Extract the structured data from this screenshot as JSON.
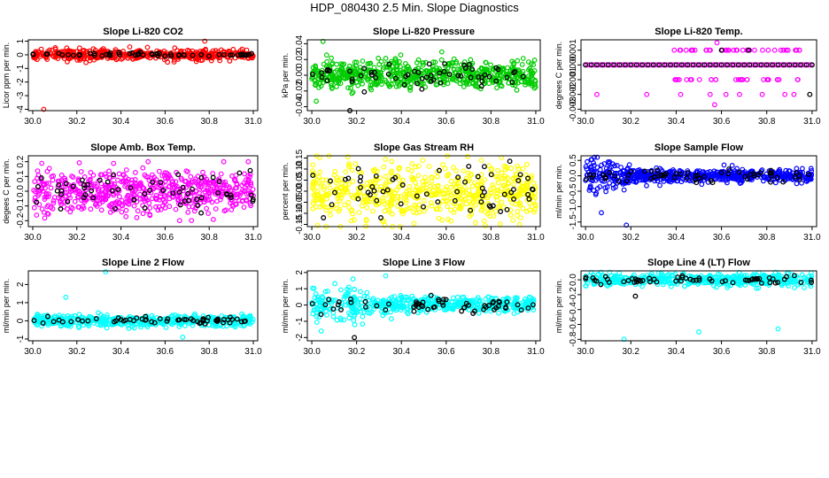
{
  "figure": {
    "title": "HDP_080430  2.5 Min. Slope Diagnostics"
  },
  "chart_data": [
    {
      "type": "scatter",
      "title": "Slope Li-820 CO2",
      "ylabel": "Licor ppm per min.",
      "xlim": [
        29.98,
        31.02
      ],
      "ylim": [
        -4.1,
        1.1
      ],
      "xticks": [
        "30.0",
        "30.2",
        "30.4",
        "30.6",
        "30.8",
        "31.0"
      ],
      "yticks": [
        -4,
        -3,
        -2,
        -1,
        0,
        1
      ],
      "ytick_labels": [
        "-4",
        "-3",
        "-2",
        "-1",
        "0",
        "1"
      ],
      "series": [
        {
          "name": "slopes",
          "color": "#ff0000",
          "values": "n=480 points, centered near 0 (sd≈0.18), range ≈ -0.6 to 1.0; outlier -4.0 at x≈30.05"
        },
        {
          "name": "selected",
          "color": "#000000",
          "values": "~60 points near 0 (sd≈0.08)"
        }
      ]
    },
    {
      "type": "scatter",
      "title": "Slope Li-820 Pressure",
      "ylabel": "kPa per min.",
      "xlim": [
        29.98,
        31.02
      ],
      "ylim": [
        -0.045,
        0.045
      ],
      "xticks": [
        "30.0",
        "30.2",
        "30.4",
        "30.6",
        "30.8",
        "31.0"
      ],
      "yticks": [
        -0.04,
        -0.02,
        0,
        0.02,
        0.04
      ],
      "ytick_labels": [
        "-0.04",
        "-0.02",
        "0.00",
        "0.02",
        "0.04"
      ],
      "series": [
        {
          "name": "slopes",
          "color": "#00cc00",
          "values": "n=620 points, mean ≈ 0 (sd≈0.009), range ≈ -0.038 to 0.043"
        },
        {
          "name": "selected",
          "color": "#000000",
          "values": "~60 points near 0 (sd≈0.007), one at -0.045 near x=30.17"
        }
      ]
    },
    {
      "type": "scatter",
      "title": "Slope Li-820 Temp.",
      "ylabel": "degrees C per min.",
      "xlim": [
        29.98,
        31.02
      ],
      "ylim": [
        -0.0031,
        0.0017
      ],
      "xticks": [
        "30.0",
        "30.2",
        "30.4",
        "30.6",
        "30.8",
        "31.0"
      ],
      "yticks": [
        -0.003,
        -0.002,
        -0.001,
        0,
        0.001
      ],
      "ytick_labels": [
        "-0.003",
        "-0.002",
        "-0.001",
        "0.000",
        "0.001"
      ],
      "series": [
        {
          "name": "slopes",
          "color": "#ff00ff",
          "values": "quantized: mostly 0.0000, some at ±0.0010, few at -0.0020 and 0.0015"
        },
        {
          "name": "selected",
          "color": "#000000",
          "values": "mostly 0.0000"
        }
      ]
    },
    {
      "type": "scatter",
      "title": "Slope Amb. Box Temp.",
      "ylabel": "degees C per min.",
      "xlim": [
        29.98,
        31.02
      ],
      "ylim": [
        -0.24,
        0.24
      ],
      "xticks": [
        "30.0",
        "30.2",
        "30.4",
        "30.6",
        "30.8",
        "31.0"
      ],
      "yticks": [
        -0.2,
        -0.1,
        0,
        0.1,
        0.2
      ],
      "ytick_labels": [
        "-0.2",
        "-0.1",
        "0.0",
        "0.1",
        "0.2"
      ],
      "series": [
        {
          "name": "slopes",
          "color": "#ff00ff",
          "values": "n=600 points, mean ≈ 0 (sd≈0.075), range ≈ -0.2 to 0.2"
        },
        {
          "name": "selected",
          "color": "#000000",
          "values": "~60 points, sd≈0.06"
        }
      ]
    },
    {
      "type": "scatter",
      "title": "Slope Gas Stream RH",
      "ylabel": "percent per min.",
      "xlim": [
        29.98,
        31.02
      ],
      "ylim": [
        -0.16,
        0.16
      ],
      "xticks": [
        "30.0",
        "30.2",
        "30.4",
        "30.6",
        "30.8",
        "31.0"
      ],
      "yticks": [
        -0.15,
        -0.1,
        -0.05,
        0,
        0.05,
        0.1,
        0.15
      ],
      "ytick_labels": [
        "-0.15",
        "-0.10",
        "-0.05",
        "0.00",
        "0.05",
        "0.10",
        "0.15"
      ],
      "series": [
        {
          "name": "slopes",
          "color": "#ffff00",
          "values": "n=600 points, mean ≈ 0 (sd≈0.06), range ≈ -0.16 to 0.16"
        },
        {
          "name": "selected",
          "color": "#000000",
          "values": "~60 points, sd≈0.06"
        }
      ]
    },
    {
      "type": "scatter",
      "title": "Slope Sample Flow",
      "ylabel": "ml/min per min.",
      "xlim": [
        29.98,
        31.02
      ],
      "ylim": [
        -1.65,
        0.65
      ],
      "xticks": [
        "30.0",
        "30.2",
        "30.4",
        "30.6",
        "30.8",
        "31.0"
      ],
      "yticks": [
        -1.5,
        -1.0,
        -0.5,
        0,
        0.5
      ],
      "ytick_labels": [
        "-1.5",
        "-1.0",
        "-0.5",
        "0.0",
        "0.5"
      ],
      "series": [
        {
          "name": "slopes",
          "color": "#0000ff",
          "values": "n=620 points, mean ≈ 0 (sd≈0.12), wider scatter ≈ ±0.6 for x<30.2; min ≈ -1.6 at x≈30.18"
        },
        {
          "name": "selected",
          "color": "#000000",
          "values": "~60 points near 0 (sd≈0.1)"
        }
      ]
    },
    {
      "type": "scatter",
      "title": "Slope Line 2 Flow",
      "ylabel": "ml/min per min.",
      "xlim": [
        29.98,
        31.02
      ],
      "ylim": [
        -1.1,
        2.75
      ],
      "xticks": [
        "30.0",
        "30.2",
        "30.4",
        "30.6",
        "30.8",
        "31.0"
      ],
      "yticks": [
        -1,
        0,
        1,
        2
      ],
      "ytick_labels": [
        "-1",
        "0",
        "1",
        "2"
      ],
      "series": [
        {
          "name": "slopes",
          "color": "#00ffff",
          "values": "n=480 points near 0 (sd≈0.18); outliers 2.7 at x≈30.33, 1.3 at x≈30.15, -0.9 at x≈30.68"
        },
        {
          "name": "selected",
          "color": "#000000",
          "values": "~60 points near 0 (sd≈0.1)"
        }
      ]
    },
    {
      "type": "scatter",
      "title": "Slope Line 3 Flow",
      "ylabel": "ml/min per min.",
      "xlim": [
        29.98,
        31.02
      ],
      "ylim": [
        -2.2,
        2.1
      ],
      "xticks": [
        "30.0",
        "30.2",
        "30.4",
        "30.6",
        "30.8",
        "31.0"
      ],
      "yticks": [
        -2,
        -1,
        0,
        1,
        2
      ],
      "ytick_labels": [
        "-2",
        "-1",
        "0",
        "1",
        "2"
      ],
      "series": [
        {
          "name": "slopes",
          "color": "#00ffff",
          "values": "n=520 points near 0 (sd≈0.3), wider ±1.6 for x<30.25; outlier 1.8 at x≈30.33"
        },
        {
          "name": "selected",
          "color": "#000000",
          "values": "~60 points, sd≈0.3; -2.0 at x≈30.19"
        }
      ]
    },
    {
      "type": "scatter",
      "title": "Slope Line 4 (LT) Flow",
      "ylabel": "ml/min per min.",
      "xlim": [
        29.98,
        31.02
      ],
      "ylim": [
        -0.82,
        0.12
      ],
      "xticks": [
        "30.0",
        "30.2",
        "30.4",
        "30.6",
        "30.8",
        "31.0"
      ],
      "yticks": [
        -0.8,
        -0.6,
        -0.4,
        -0.2,
        0
      ],
      "ytick_labels": [
        "-0.8",
        "-0.6",
        "-0.4",
        "-0.2",
        "0.0"
      ],
      "series": [
        {
          "name": "slopes",
          "color": "#00ffff",
          "values": "n=480 points near 0 (sd≈0.04); outliers -0.8 at x≈30.17, -0.7 at x≈30.5, -0.66 at x≈30.85"
        },
        {
          "name": "selected",
          "color": "#000000",
          "values": "~60 points near 0 (sd≈0.03)"
        }
      ]
    }
  ]
}
